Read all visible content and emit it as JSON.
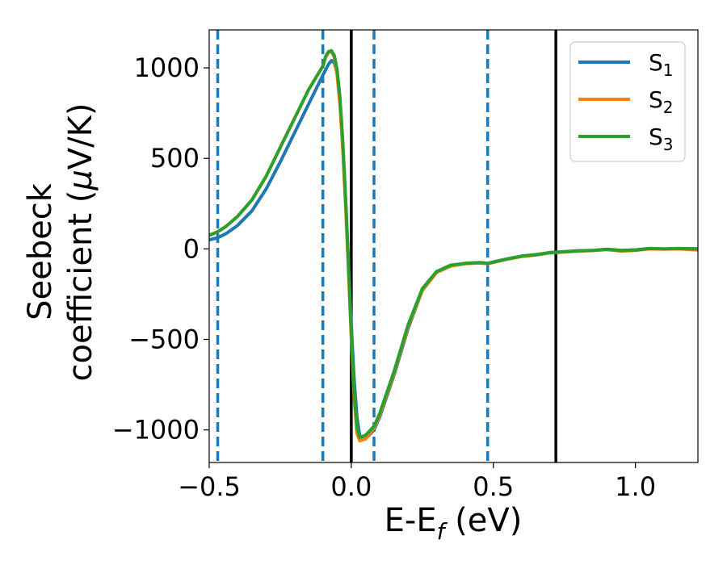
{
  "chart_data": {
    "type": "line",
    "title": "",
    "xlabel": "E-E",
    "xlabel_sub": "f",
    "xlabel_unit": " (eV)",
    "ylabel_line1": "Seebeck",
    "ylabel_line2_pre": "coefficient  (",
    "ylabel_line2_mu": "μ",
    "ylabel_line2_post": "V/K)",
    "xlim": [
      -0.5,
      1.22
    ],
    "ylim": [
      -1180,
      1210
    ],
    "xticks": [
      -0.5,
      0.0,
      0.5,
      1.0
    ],
    "xtick_labels": [
      "−0.5",
      "0.0",
      "0.5",
      "1.0"
    ],
    "yticks": [
      -1000,
      -500,
      0,
      500,
      1000
    ],
    "ytick_labels": [
      "−1000",
      "−500",
      "0",
      "500",
      "1000"
    ],
    "grid": false,
    "legend_position": "top-right",
    "vlines_solid": [
      0.0,
      0.72
    ],
    "vlines_dashed": [
      -0.47,
      -0.1,
      0.08,
      0.48
    ],
    "colors": {
      "S1": "#1f77b4",
      "S2": "#ff7f0e",
      "S3": "#2ca02c",
      "solid_line": "#000000",
      "dashed_line": "#1f77b4"
    },
    "series": [
      {
        "name": "S",
        "name_sub": "1",
        "color": "#1f77b4",
        "x": [
          -0.5,
          -0.47,
          -0.44,
          -0.4,
          -0.35,
          -0.3,
          -0.25,
          -0.2,
          -0.15,
          -0.1,
          -0.08,
          -0.07,
          -0.06,
          -0.05,
          -0.04,
          -0.03,
          -0.02,
          -0.01,
          0.0,
          0.01,
          0.02,
          0.03,
          0.05,
          0.08,
          0.1,
          0.15,
          0.2,
          0.25,
          0.3,
          0.35,
          0.4,
          0.45,
          0.48,
          0.5,
          0.55,
          0.6,
          0.65,
          0.7,
          0.75,
          0.8,
          0.85,
          0.9,
          0.95,
          1.0,
          1.05,
          1.1,
          1.15,
          1.22
        ],
        "y": [
          50,
          62,
          85,
          130,
          210,
          330,
          480,
          640,
          800,
          960,
          1020,
          1040,
          1030,
          970,
          820,
          580,
          280,
          -80,
          -420,
          -720,
          -930,
          -1035,
          -1050,
          -1000,
          -930,
          -700,
          -440,
          -230,
          -130,
          -95,
          -80,
          -75,
          -80,
          -72,
          -55,
          -40,
          -32,
          -20,
          -15,
          -10,
          -8,
          -2,
          -8,
          -5,
          2,
          0,
          2,
          0
        ]
      },
      {
        "name": "S",
        "name_sub": "2",
        "color": "#ff7f0e",
        "x": [
          -0.5,
          -0.47,
          -0.44,
          -0.4,
          -0.35,
          -0.3,
          -0.25,
          -0.2,
          -0.15,
          -0.1,
          -0.09,
          -0.08,
          -0.07,
          -0.06,
          -0.05,
          -0.04,
          -0.03,
          -0.02,
          -0.01,
          0.0,
          0.01,
          0.02,
          0.03,
          0.05,
          0.08,
          0.1,
          0.15,
          0.2,
          0.25,
          0.3,
          0.35,
          0.4,
          0.45,
          0.48,
          0.5,
          0.55,
          0.6,
          0.65,
          0.7,
          0.75,
          0.8,
          0.85,
          0.9,
          0.95,
          1.0,
          1.05,
          1.1,
          1.15,
          1.22
        ],
        "y": [
          75,
          95,
          125,
          180,
          270,
          400,
          560,
          720,
          880,
          1010,
          1060,
          1085,
          1090,
          1060,
          960,
          800,
          550,
          240,
          -120,
          -500,
          -820,
          -1020,
          -1060,
          -1050,
          -990,
          -920,
          -690,
          -430,
          -230,
          -130,
          -95,
          -82,
          -78,
          -82,
          -75,
          -57,
          -42,
          -34,
          -22,
          -17,
          -12,
          -9,
          -4,
          -12,
          -8,
          0,
          -2,
          0,
          -6
        ]
      },
      {
        "name": "S",
        "name_sub": "3",
        "color": "#2ca02c",
        "x": [
          -0.5,
          -0.47,
          -0.44,
          -0.4,
          -0.35,
          -0.3,
          -0.25,
          -0.2,
          -0.15,
          -0.1,
          -0.09,
          -0.08,
          -0.07,
          -0.06,
          -0.05,
          -0.04,
          -0.03,
          -0.02,
          -0.01,
          0.0,
          0.01,
          0.02,
          0.03,
          0.05,
          0.08,
          0.1,
          0.15,
          0.2,
          0.25,
          0.3,
          0.35,
          0.4,
          0.45,
          0.48,
          0.5,
          0.55,
          0.6,
          0.65,
          0.7,
          0.75,
          0.8,
          0.85,
          0.9,
          0.95,
          1.0,
          1.05,
          1.1,
          1.15,
          1.22
        ],
        "y": [
          75,
          95,
          125,
          180,
          270,
          400,
          560,
          720,
          880,
          1010,
          1065,
          1090,
          1095,
          1070,
          990,
          840,
          600,
          280,
          -90,
          -470,
          -790,
          -990,
          -1040,
          -1030,
          -980,
          -910,
          -680,
          -420,
          -220,
          -125,
          -90,
          -80,
          -76,
          -80,
          -73,
          -55,
          -40,
          -32,
          -21,
          -16,
          -11,
          -8,
          -3,
          -9,
          -6,
          2,
          0,
          2,
          0
        ]
      }
    ]
  }
}
